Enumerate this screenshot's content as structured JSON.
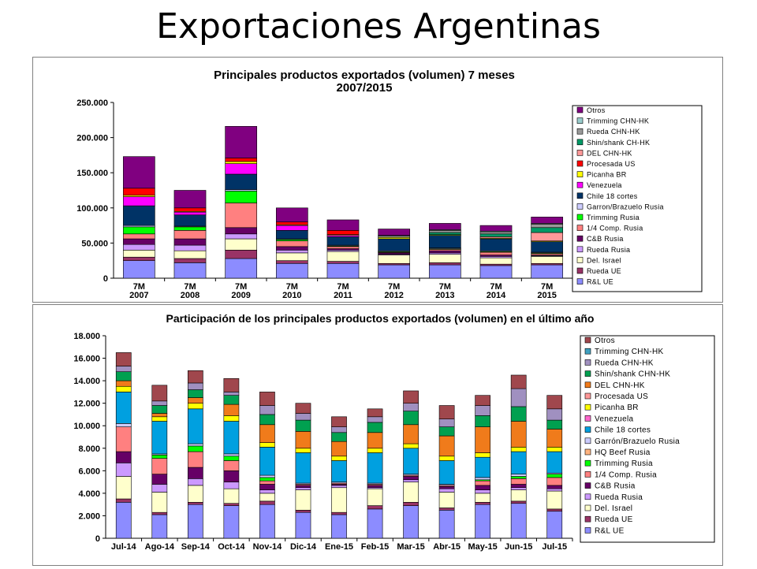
{
  "slide": {
    "title": "Exportaciones Argentinas"
  },
  "chart_data": [
    {
      "type": "bar",
      "stacked": true,
      "title": "Principales productos exportados (volumen) 7 meses 2007/2015",
      "title_lines": [
        "Principales productos exportados (volumen) 7 meses",
        "2007/2015"
      ],
      "categories": [
        [
          "7M",
          "2007"
        ],
        [
          "7M",
          "2008"
        ],
        [
          "7M",
          "2009"
        ],
        [
          "7M",
          "2010"
        ],
        [
          "7M",
          "2011"
        ],
        [
          "7M",
          "2012"
        ],
        [
          "7M",
          "2013"
        ],
        [
          "7M",
          "2014"
        ],
        [
          "7M",
          "2015"
        ]
      ],
      "ylim": [
        0,
        250000
      ],
      "yticks": [
        0,
        50000,
        100000,
        150000,
        200000,
        250000
      ],
      "ytick_labels": [
        "0",
        "50.000",
        "100.000",
        "150.000",
        "200.000",
        "250.000"
      ],
      "grid": false,
      "legend_position": "right",
      "series": [
        {
          "name": "R&L UE",
          "color": "#8C8CFF",
          "values": [
            25000,
            22000,
            28000,
            21000,
            21000,
            19000,
            19000,
            18000,
            19000
          ]
        },
        {
          "name": "Rueda UE",
          "color": "#993366",
          "values": [
            5000,
            6000,
            12000,
            4000,
            3000,
            2000,
            3000,
            2000,
            2000
          ]
        },
        {
          "name": "Del. Israel",
          "color": "#FFFFCC",
          "values": [
            10000,
            11000,
            16000,
            11000,
            14000,
            12000,
            12000,
            9000,
            10000
          ]
        },
        {
          "name": "Rueda Rusia",
          "color": "#CC99FF",
          "values": [
            8000,
            8000,
            7000,
            4000,
            2000,
            1000,
            2000,
            2000,
            1000
          ]
        },
        {
          "name": "C&B Rusia",
          "color": "#660066",
          "values": [
            8000,
            9000,
            9000,
            5000,
            2000,
            2000,
            3000,
            2000,
            1000
          ]
        },
        {
          "name": "1/4 Comp. Rusia",
          "color": "#FF8080",
          "values": [
            7000,
            12000,
            35000,
            8000,
            3000,
            1000,
            2000,
            4000,
            2000
          ]
        },
        {
          "name": "Trimming Rusia",
          "color": "#00FF00",
          "values": [
            10000,
            5000,
            17000,
            2000,
            1000,
            1000,
            1000,
            1000,
            1000
          ]
        },
        {
          "name": "Garron/Brazuelo Rusia",
          "color": "#CCCCFF",
          "values": [
            2000,
            1000,
            2000,
            1000,
            1000,
            1000,
            1000,
            1000,
            1000
          ]
        },
        {
          "name": "Chile 18 cortes",
          "color": "#003366",
          "values": [
            28000,
            16000,
            22000,
            12000,
            12000,
            17000,
            18000,
            17000,
            15000
          ]
        },
        {
          "name": "Venezuela",
          "color": "#FF00FF",
          "values": [
            13000,
            4000,
            15000,
            7000,
            2000,
            0,
            0,
            0,
            0
          ]
        },
        {
          "name": "Picanha BR",
          "color": "#FFFF00",
          "values": [
            2000,
            1000,
            3000,
            1000,
            1000,
            2000,
            1000,
            1000,
            1000
          ]
        },
        {
          "name": "Procesada US",
          "color": "#FF0000",
          "values": [
            10000,
            5000,
            5000,
            4000,
            6000,
            0,
            0,
            0,
            0
          ]
        },
        {
          "name": "DEL CHN-HK",
          "color": "#FF9999",
          "values": [
            0,
            0,
            0,
            0,
            0,
            0,
            0,
            2000,
            12000
          ]
        },
        {
          "name": "Shin/shank CH-HK",
          "color": "#009966",
          "values": [
            0,
            0,
            0,
            0,
            0,
            0,
            3000,
            4000,
            7000
          ]
        },
        {
          "name": "Rueda CHN-HK",
          "color": "#999999",
          "values": [
            0,
            0,
            0,
            0,
            0,
            2000,
            3000,
            3000,
            5000
          ]
        },
        {
          "name": "Trimming CHN-HK",
          "color": "#99CCCC",
          "values": [
            0,
            0,
            0,
            0,
            0,
            1000,
            1000,
            1000,
            1000
          ]
        },
        {
          "name": "Otros",
          "color": "#800080",
          "values": [
            45000,
            25000,
            45000,
            20000,
            15000,
            9000,
            9000,
            8000,
            9000
          ]
        }
      ]
    },
    {
      "type": "bar",
      "stacked": true,
      "title": "Participación de los principales productos exportados (volumen) en el último año",
      "categories": [
        "Jul-14",
        "Ago-14",
        "Sep-14",
        "Oct-14",
        "Nov-14",
        "Dic-14",
        "Ene-15",
        "Feb-15",
        "Mar-15",
        "Abr-15",
        "May-15",
        "Jun-15",
        "Jul-15"
      ],
      "ylim": [
        0,
        18000
      ],
      "yticks": [
        0,
        2000,
        4000,
        6000,
        8000,
        10000,
        12000,
        14000,
        16000,
        18000
      ],
      "ytick_labels": [
        "0",
        "2.000",
        "4.000",
        "6.000",
        "8.000",
        "10.000",
        "12.000",
        "14.000",
        "16.000",
        "18.000"
      ],
      "grid": false,
      "legend_position": "right",
      "series": [
        {
          "name": "R&L UE",
          "color": "#8C8CFF",
          "values": [
            3200,
            2100,
            3000,
            2900,
            3000,
            2300,
            2100,
            2600,
            2900,
            2500,
            3000,
            3100,
            2400
          ]
        },
        {
          "name": "Rueda UE",
          "color": "#993366",
          "values": [
            300,
            200,
            200,
            200,
            300,
            200,
            200,
            300,
            300,
            200,
            200,
            200,
            200
          ]
        },
        {
          "name": "Del. Israel",
          "color": "#FFFFCC",
          "values": [
            2000,
            1800,
            1500,
            1300,
            700,
            1800,
            2200,
            1500,
            1800,
            1400,
            800,
            1000,
            1600
          ]
        },
        {
          "name": "Rueda Rusia",
          "color": "#CC99FF",
          "values": [
            1200,
            700,
            600,
            600,
            300,
            200,
            200,
            100,
            200,
            300,
            300,
            200,
            200
          ]
        },
        {
          "name": "C&B Rusia",
          "color": "#660066",
          "values": [
            1000,
            900,
            1000,
            1000,
            500,
            200,
            100,
            200,
            300,
            200,
            400,
            300,
            300
          ]
        },
        {
          "name": "1/4 Comp. Rusia",
          "color": "#FF8080",
          "values": [
            2200,
            1400,
            1400,
            900,
            300,
            100,
            100,
            100,
            100,
            100,
            400,
            500,
            700
          ]
        },
        {
          "name": "Trimming Rusia",
          "color": "#00FF00",
          "values": [
            0,
            300,
            500,
            400,
            300,
            0,
            0,
            0,
            0,
            0,
            100,
            200,
            300
          ]
        },
        {
          "name": "HQ Beef Rusia",
          "color": "#FFB380",
          "values": [
            0,
            0,
            0,
            0,
            0,
            0,
            0,
            0,
            0,
            0,
            0,
            0,
            0
          ]
        },
        {
          "name": "Garrón/Brazuelo Rusia",
          "color": "#CCCCFF",
          "values": [
            300,
            100,
            200,
            200,
            200,
            100,
            100,
            100,
            100,
            100,
            200,
            200,
            100
          ]
        },
        {
          "name": "Chile 18 cortes",
          "color": "#00A0E0",
          "values": [
            2800,
            2900,
            3100,
            2900,
            2500,
            2700,
            1900,
            2700,
            2300,
            2100,
            1800,
            2000,
            1900
          ]
        },
        {
          "name": "Venezuela",
          "color": "#FF66CC",
          "values": [
            0,
            0,
            0,
            0,
            0,
            0,
            0,
            0,
            0,
            0,
            0,
            0,
            0
          ]
        },
        {
          "name": "Picanha BR",
          "color": "#FFFF00",
          "values": [
            500,
            400,
            500,
            500,
            400,
            400,
            400,
            400,
            400,
            400,
            400,
            400,
            400
          ]
        },
        {
          "name": "Procesada US",
          "color": "#FF9999",
          "values": [
            0,
            0,
            0,
            0,
            0,
            0,
            0,
            0,
            0,
            0,
            0,
            0,
            0
          ]
        },
        {
          "name": "DEL CHN-HK",
          "color": "#F07B1B",
          "values": [
            500,
            300,
            500,
            1000,
            1600,
            1500,
            1300,
            1400,
            1700,
            1800,
            2300,
            2300,
            1600
          ]
        },
        {
          "name": "Shin/shank CHN-HK",
          "color": "#00A050",
          "values": [
            800,
            700,
            700,
            800,
            900,
            1000,
            800,
            900,
            1200,
            800,
            1000,
            1300,
            800
          ]
        },
        {
          "name": "Rueda CHN-HK",
          "color": "#A090C0",
          "values": [
            500,
            400,
            600,
            300,
            800,
            600,
            500,
            500,
            700,
            700,
            900,
            1600,
            1000
          ]
        },
        {
          "name": "Trimming CHN-HK",
          "color": "#40A0C0",
          "values": [
            0,
            0,
            0,
            0,
            0,
            0,
            0,
            0,
            0,
            0,
            0,
            0,
            0
          ]
        },
        {
          "name": "Otros",
          "color": "#A0474D",
          "values": [
            1200,
            1400,
            1100,
            1200,
            1200,
            900,
            900,
            700,
            1100,
            1200,
            900,
            1200,
            1200
          ]
        }
      ]
    }
  ]
}
